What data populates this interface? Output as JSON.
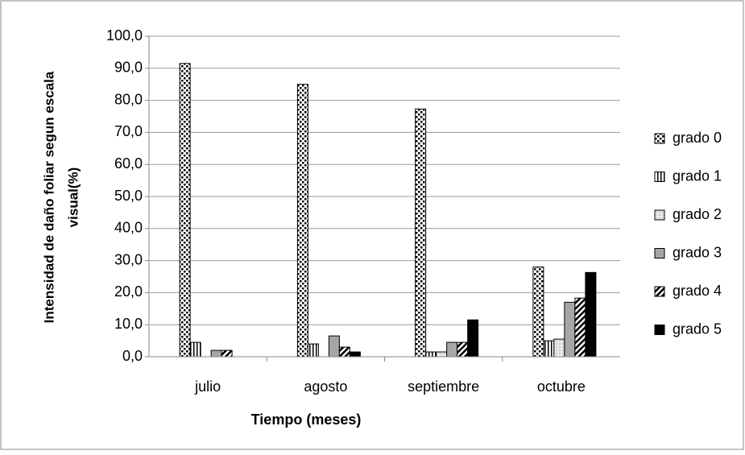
{
  "chart_data": {
    "type": "bar",
    "xlabel": "Tiempo (meses)",
    "ylabel": [
      "Intensidad de daño foliar segun escala",
      "visual(%)"
    ],
    "categories": [
      "julio",
      "agosto",
      "septiembre",
      "octubre"
    ],
    "series": [
      {
        "name": "grado 0",
        "color": "#ffffff",
        "values": [
          91.5,
          85.0,
          77.3,
          28.0
        ]
      },
      {
        "name": "grado 1",
        "color": "#ffffff",
        "values": [
          4.5,
          4.0,
          1.5,
          5.0
        ]
      },
      {
        "name": "grado 2",
        "color": "#d9d9d9",
        "values": [
          0,
          0,
          1.5,
          5.5
        ]
      },
      {
        "name": "grado 3",
        "color": "#a6a6a6",
        "values": [
          2.0,
          6.5,
          4.5,
          17.0
        ]
      },
      {
        "name": "grado 4",
        "color": "#ffffff",
        "values": [
          2.0,
          3.0,
          4.5,
          18.3
        ]
      },
      {
        "name": "grado 5",
        "color": "#000000",
        "values": [
          0,
          1.5,
          11.5,
          26.3
        ]
      }
    ],
    "ylim": [
      0,
      100
    ],
    "yticks": [
      {
        "value": 0,
        "label": "0,0"
      },
      {
        "value": 10,
        "label": "10,0"
      },
      {
        "value": 20,
        "label": "20,0"
      },
      {
        "value": 30,
        "label": "30,0"
      },
      {
        "value": 40,
        "label": "40,0"
      },
      {
        "value": 50,
        "label": "50,0"
      },
      {
        "value": 60,
        "label": "60,0"
      },
      {
        "value": 70,
        "label": "70,0"
      },
      {
        "value": 80,
        "label": "80,0"
      },
      {
        "value": 90,
        "label": "90,0"
      },
      {
        "value": 100,
        "label": "100,0"
      }
    ],
    "grid": true,
    "legend": "right"
  }
}
